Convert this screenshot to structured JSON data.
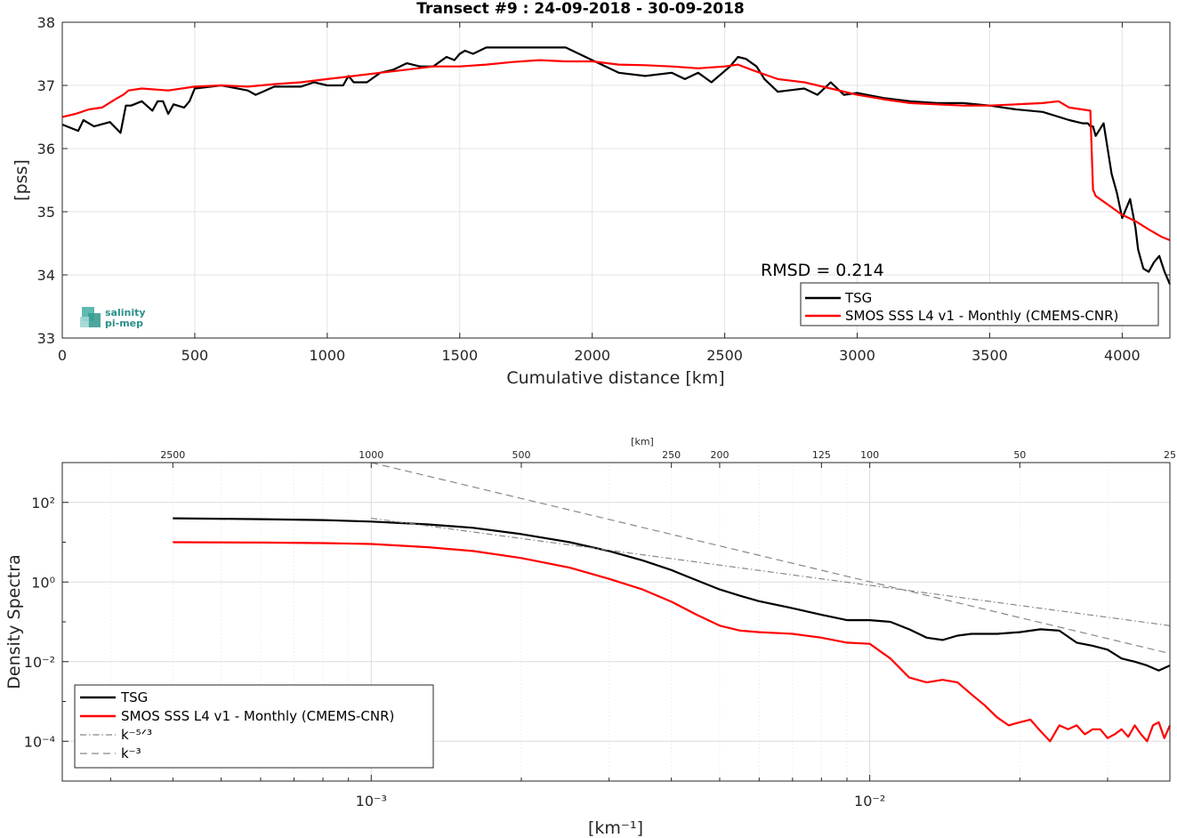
{
  "chart_data": [
    {
      "type": "line",
      "title": "Transect #9 : 24-09-2018 - 30-09-2018",
      "xlabel": "Cumulative distance [km]",
      "ylabel": "[pss]",
      "xlim": [
        0,
        4180
      ],
      "ylim": [
        33,
        38
      ],
      "xticks": [
        "0",
        "500",
        "1000",
        "1500",
        "2000",
        "2500",
        "3000",
        "3500",
        "4000"
      ],
      "yticks": [
        "33",
        "34",
        "35",
        "36",
        "37",
        "38"
      ],
      "grid": true,
      "legend_position": "bottom-right",
      "annotation": "RMSD = 0.214",
      "logo": [
        "salinity",
        "pi-mep"
      ],
      "series": [
        {
          "name": "TSG",
          "color": "#000000",
          "x": [
            0,
            60,
            80,
            120,
            180,
            220,
            240,
            260,
            300,
            340,
            360,
            380,
            400,
            420,
            460,
            480,
            500,
            600,
            700,
            730,
            800,
            900,
            950,
            1000,
            1060,
            1080,
            1100,
            1150,
            1200,
            1250,
            1300,
            1350,
            1400,
            1450,
            1480,
            1500,
            1520,
            1550,
            1600,
            1700,
            1800,
            1900,
            2000,
            2100,
            2200,
            2300,
            2350,
            2400,
            2450,
            2520,
            2550,
            2580,
            2620,
            2650,
            2700,
            2800,
            2850,
            2900,
            2950,
            3000,
            3100,
            3200,
            3300,
            3400,
            3500,
            3600,
            3700,
            3800,
            3850,
            3870,
            3880,
            3890,
            3900,
            3930,
            3960,
            3980,
            4000,
            4030,
            4050,
            4060,
            4080,
            4100,
            4120,
            4140,
            4160,
            4180
          ],
          "y": [
            36.38,
            36.28,
            36.45,
            36.35,
            36.42,
            36.25,
            36.68,
            36.68,
            36.75,
            36.6,
            36.75,
            36.75,
            36.55,
            36.7,
            36.65,
            36.75,
            36.95,
            37.0,
            36.92,
            36.85,
            36.98,
            36.98,
            37.05,
            37.0,
            37.0,
            37.15,
            37.05,
            37.05,
            37.2,
            37.25,
            37.35,
            37.3,
            37.3,
            37.45,
            37.4,
            37.5,
            37.55,
            37.5,
            37.6,
            37.6,
            37.6,
            37.6,
            37.4,
            37.2,
            37.15,
            37.2,
            37.1,
            37.2,
            37.05,
            37.3,
            37.45,
            37.42,
            37.3,
            37.1,
            36.9,
            36.95,
            36.85,
            37.05,
            36.85,
            36.88,
            36.8,
            36.75,
            36.72,
            36.72,
            36.68,
            36.62,
            36.58,
            36.45,
            36.4,
            36.4,
            36.35,
            36.35,
            36.2,
            36.4,
            35.6,
            35.3,
            34.9,
            35.2,
            34.75,
            34.4,
            34.1,
            34.05,
            34.2,
            34.3,
            34.05,
            33.85
          ]
        },
        {
          "name": "SMOS SSS L4 v1 - Monthly (CMEMS-CNR)",
          "color": "#ff0000",
          "x": [
            0,
            50,
            100,
            150,
            200,
            230,
            250,
            300,
            400,
            500,
            600,
            700,
            800,
            900,
            1000,
            1100,
            1200,
            1300,
            1400,
            1500,
            1600,
            1700,
            1800,
            1900,
            2000,
            2100,
            2200,
            2300,
            2400,
            2500,
            2550,
            2600,
            2700,
            2800,
            2900,
            3000,
            3100,
            3200,
            3300,
            3400,
            3500,
            3600,
            3700,
            3760,
            3800,
            3880,
            3890,
            3900,
            3950,
            4000,
            4050,
            4100,
            4150,
            4180
          ],
          "y": [
            36.5,
            36.55,
            36.62,
            36.65,
            36.78,
            36.85,
            36.92,
            36.95,
            36.92,
            36.98,
            37.0,
            36.98,
            37.02,
            37.05,
            37.1,
            37.15,
            37.2,
            37.25,
            37.3,
            37.3,
            37.33,
            37.37,
            37.4,
            37.38,
            37.38,
            37.33,
            37.32,
            37.3,
            37.27,
            37.3,
            37.33,
            37.25,
            37.1,
            37.05,
            36.95,
            36.85,
            36.78,
            36.72,
            36.7,
            36.68,
            36.68,
            36.7,
            36.72,
            36.75,
            36.65,
            36.6,
            35.35,
            35.25,
            35.1,
            34.95,
            34.85,
            34.72,
            34.6,
            34.55
          ]
        }
      ]
    },
    {
      "type": "line",
      "xlabel": "[km⁻¹]",
      "ylabel": "Density Spectra",
      "xscale": "log",
      "yscale": "log",
      "xlim": [
        0.00024,
        0.04
      ],
      "ylim": [
        1e-05,
        1000
      ],
      "xticks": [
        "10⁻³",
        "10⁻²"
      ],
      "yticks": [
        "10⁻⁴",
        "10⁻²",
        "10⁰",
        "10²"
      ],
      "top_axis_label": "[km]",
      "top_axis_ticks": [
        "2500",
        "1000",
        "500",
        "250",
        "200",
        "125",
        "100",
        "50",
        "25"
      ],
      "grid": true,
      "legend_position": "bottom-left",
      "series": [
        {
          "name": "TSG",
          "color": "#000000",
          "x": [
            0.0004,
            0.0006,
            0.0008,
            0.001,
            0.0013,
            0.0016,
            0.002,
            0.0025,
            0.003,
            0.0035,
            0.004,
            0.0045,
            0.005,
            0.0055,
            0.006,
            0.007,
            0.008,
            0.009,
            0.01,
            0.011,
            0.012,
            0.013,
            0.014,
            0.015,
            0.016,
            0.018,
            0.02,
            0.022,
            0.024,
            0.026,
            0.028,
            0.03,
            0.032,
            0.034,
            0.036,
            0.038,
            0.04
          ],
          "y": [
            40,
            38,
            36,
            33,
            28,
            23,
            16,
            10,
            6,
            3.5,
            2.0,
            1.1,
            0.65,
            0.45,
            0.33,
            0.22,
            0.15,
            0.11,
            0.11,
            0.1,
            0.065,
            0.04,
            0.035,
            0.045,
            0.05,
            0.05,
            0.055,
            0.065,
            0.06,
            0.03,
            0.025,
            0.02,
            0.012,
            0.01,
            0.008,
            0.006,
            0.008
          ]
        },
        {
          "name": "SMOS SSS L4 v1 - Monthly (CMEMS-CNR)",
          "color": "#ff0000",
          "x": [
            0.0004,
            0.0006,
            0.0008,
            0.001,
            0.0013,
            0.0016,
            0.002,
            0.0025,
            0.003,
            0.0035,
            0.004,
            0.0045,
            0.005,
            0.0055,
            0.006,
            0.007,
            0.008,
            0.009,
            0.01,
            0.011,
            0.012,
            0.013,
            0.014,
            0.015,
            0.016,
            0.017,
            0.018,
            0.019,
            0.02,
            0.021,
            0.022,
            0.023,
            0.024,
            0.025,
            0.026,
            0.027,
            0.028,
            0.029,
            0.03,
            0.031,
            0.032,
            0.033,
            0.034,
            0.035,
            0.036,
            0.037,
            0.038,
            0.039,
            0.04
          ],
          "y": [
            10,
            9.8,
            9.5,
            9,
            7.5,
            6,
            4,
            2.3,
            1.2,
            0.65,
            0.32,
            0.15,
            0.08,
            0.06,
            0.055,
            0.05,
            0.04,
            0.03,
            0.028,
            0.012,
            0.004,
            0.003,
            0.0035,
            0.003,
            0.0015,
            0.0008,
            0.0004,
            0.00025,
            0.0003,
            0.00035,
            0.00018,
            0.0001,
            0.00025,
            0.0002,
            0.00025,
            0.00015,
            0.0002,
            0.0002,
            0.00012,
            0.00015,
            0.0002,
            0.00013,
            0.00025,
            0.00015,
            0.0001,
            0.00025,
            0.0003,
            0.00012,
            0.00025
          ]
        },
        {
          "name": "k⁻⁵ᐟ³",
          "color": "#888888",
          "dash": "dash-dot",
          "x": [
            0.001,
            0.04
          ],
          "y": [
            40,
            0.08
          ]
        },
        {
          "name": "k⁻³",
          "color": "#888888",
          "dash": "dashed",
          "x": [
            0.001,
            0.04
          ],
          "y": [
            1000,
            0.016
          ]
        }
      ]
    }
  ]
}
